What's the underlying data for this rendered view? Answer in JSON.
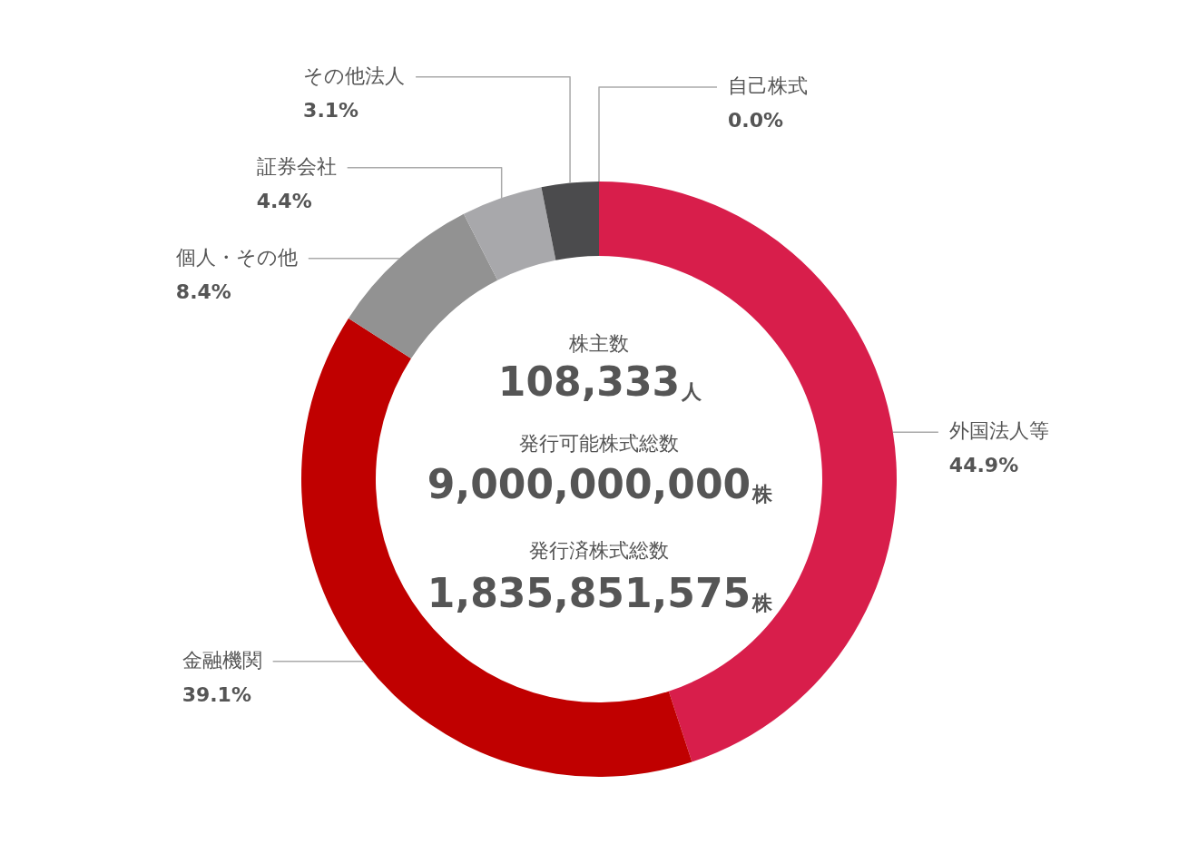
{
  "chart_data": {
    "type": "donut",
    "categories": [
      "外国法人等",
      "金融機関",
      "個人・その他",
      "証券会社",
      "その他法人",
      "自己株式"
    ],
    "values": [
      44.9,
      39.1,
      8.4,
      4.4,
      3.1,
      0.0
    ],
    "value_labels": [
      "44.9%",
      "39.1%",
      "8.4%",
      "4.4%",
      "3.1%",
      "0.0%"
    ],
    "colors": [
      "#d81e4b",
      "#c00000",
      "#929292",
      "#a8a8ab",
      "#4b4b4d",
      "#6d6d6d"
    ],
    "legend": false,
    "annotations": [
      "株主数",
      "108,333人",
      "発行可能株式総数",
      "9,000,000,000株",
      "発行済株式総数",
      "1,835,851,575株"
    ]
  }
}
